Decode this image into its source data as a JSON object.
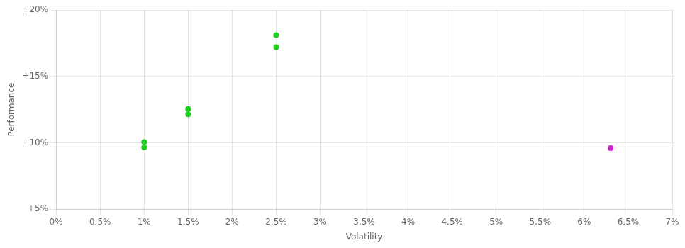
{
  "chart_data": {
    "type": "scatter",
    "xlabel": "Volatility",
    "ylabel": "Performance",
    "series": [
      {
        "color": "#22cc22",
        "x": [
          0.01,
          0.01,
          0.015,
          0.015,
          0.025,
          0.025
        ],
        "values": [
          0.1005,
          0.0965,
          0.1255,
          0.1215,
          0.181,
          0.172
        ]
      },
      {
        "color": "#cc22cc",
        "x": [
          0.063
        ],
        "values": [
          0.096
        ]
      }
    ],
    "xlim": [
      0.0,
      0.07
    ],
    "ylim": [
      0.05,
      0.2
    ],
    "xticks": [
      {
        "value": 0.0,
        "label": "0%"
      },
      {
        "value": 0.005,
        "label": "0.5%"
      },
      {
        "value": 0.01,
        "label": "1%"
      },
      {
        "value": 0.015,
        "label": "1.5%"
      },
      {
        "value": 0.02,
        "label": "2%"
      },
      {
        "value": 0.025,
        "label": "2.5%"
      },
      {
        "value": 0.03,
        "label": "3%"
      },
      {
        "value": 0.035,
        "label": "3.5%"
      },
      {
        "value": 0.04,
        "label": "4%"
      },
      {
        "value": 0.045,
        "label": "4.5%"
      },
      {
        "value": 0.05,
        "label": "5%"
      },
      {
        "value": 0.055,
        "label": "5.5%"
      },
      {
        "value": 0.06,
        "label": "6%"
      },
      {
        "value": 0.065,
        "label": "6.5%"
      },
      {
        "value": 0.07,
        "label": "7%"
      }
    ],
    "yticks": [
      {
        "value": 0.05,
        "label": "+5%"
      },
      {
        "value": 0.1,
        "label": "+10%"
      },
      {
        "value": 0.15,
        "label": "+15%"
      },
      {
        "value": 0.2,
        "label": "+20%"
      }
    ],
    "grid": true
  }
}
